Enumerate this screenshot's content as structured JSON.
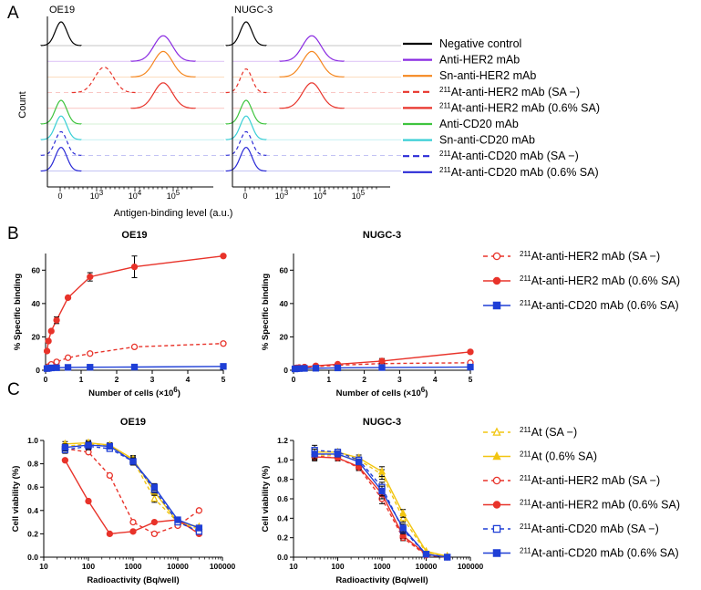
{
  "panel_letters": [
    "A",
    "B",
    "C"
  ],
  "panel_a": {
    "cell_lines": [
      "OE19",
      "NUGC-3"
    ],
    "ylabel": "Count",
    "xlabel": "Antigen-binding level (a.u.)",
    "ticks": [
      "0",
      "10",
      "3",
      "10",
      "4",
      "10",
      "5"
    ],
    "legend": [
      {
        "prefix": "",
        "text": "Negative control",
        "color": "#000000",
        "dashed": false
      },
      {
        "prefix": "",
        "text": "Anti-HER2 mAb",
        "color": "#8a2be2",
        "dashed": false
      },
      {
        "prefix": "",
        "text": "Sn-anti-HER2 mAb",
        "color": "#f5871f",
        "dashed": false
      },
      {
        "prefix": "211",
        "text": "At-anti-HER2 mAb (SA −)",
        "color": "#e8332a",
        "dashed": true
      },
      {
        "prefix": "211",
        "text": "At-anti-HER2 mAb (0.6% SA)",
        "color": "#e8332a",
        "dashed": false
      },
      {
        "prefix": "",
        "text": "Anti-CD20 mAb",
        "color": "#3ec43e",
        "dashed": false
      },
      {
        "prefix": "",
        "text": "Sn-anti-CD20 mAb",
        "color": "#39cfd6",
        "dashed": false
      },
      {
        "prefix": "211",
        "text": "At-anti-CD20 mAb (SA −)",
        "color": "#2b2bd6",
        "dashed": true
      },
      {
        "prefix": "211",
        "text": "At-anti-CD20 mAb (0.6% SA)",
        "color": "#2b2bd6",
        "dashed": false
      }
    ]
  },
  "panel_b_legend": [
    {
      "prefix": "211",
      "text": "At-anti-HER2 mAb (SA −)",
      "color": "#e8332a",
      "dashed": true,
      "marker": "open-circle"
    },
    {
      "prefix": "211",
      "text": "At-anti-HER2 mAb (0.6% SA)",
      "color": "#e8332a",
      "dashed": false,
      "marker": "filled-circle"
    },
    {
      "prefix": "211",
      "text": "At-anti-CD20 mAb (0.6% SA)",
      "color": "#1f3fd6",
      "dashed": false,
      "marker": "filled-square"
    }
  ],
  "panel_c_legend": [
    {
      "prefix": "211",
      "text": "At (SA −)",
      "color": "#f2c511",
      "dashed": true,
      "marker": "open-triangle"
    },
    {
      "prefix": "211",
      "text": "At (0.6% SA)",
      "color": "#f2c511",
      "dashed": false,
      "marker": "filled-triangle"
    },
    {
      "prefix": "211",
      "text": "At-anti-HER2 mAb (SA −)",
      "color": "#e8332a",
      "dashed": true,
      "marker": "open-circle"
    },
    {
      "prefix": "211",
      "text": "At-anti-HER2 mAb (0.6% SA)",
      "color": "#e8332a",
      "dashed": false,
      "marker": "filled-circle"
    },
    {
      "prefix": "211",
      "text": "At-anti-CD20 mAb (SA −)",
      "color": "#1f3fd6",
      "dashed": true,
      "marker": "open-square"
    },
    {
      "prefix": "211",
      "text": "At-anti-CD20 mAb (0.6% SA)",
      "color": "#1f3fd6",
      "dashed": false,
      "marker": "filled-square"
    }
  ],
  "chart_data": [
    {
      "id": "B-OE19",
      "type": "line",
      "title": "OE19",
      "xlabel": "Number of cells (×10",
      "xlabel_sup": "6",
      "xlabel_end": ")",
      "ylabel": "% Specific binding",
      "xlim": [
        0,
        5
      ],
      "ylim": [
        0,
        70
      ],
      "xticks": [
        0,
        1,
        2,
        3,
        4,
        5
      ],
      "yticks": [
        0,
        20,
        40,
        60
      ],
      "series": [
        {
          "name": "211At-anti-HER2 mAb (SA −)",
          "color": "#e8332a",
          "dashed": true,
          "marker": "open-circle",
          "x": [
            0.04,
            0.08,
            0.16,
            0.31,
            0.63,
            1.25,
            2.5,
            5
          ],
          "y": [
            1.0,
            2.2,
            3.5,
            5.0,
            7.5,
            10.0,
            14.0,
            16.0
          ],
          "err": [
            0,
            0,
            0,
            0,
            0,
            0,
            0,
            0
          ]
        },
        {
          "name": "211At-anti-HER2 mAb (0.6% SA)",
          "color": "#e8332a",
          "dashed": false,
          "marker": "filled-circle",
          "x": [
            0.04,
            0.08,
            0.16,
            0.31,
            0.63,
            1.25,
            2.5,
            5
          ],
          "y": [
            11.5,
            17.5,
            23.5,
            30.0,
            43.5,
            56.0,
            62.0,
            68.5
          ],
          "err": [
            0,
            0,
            0,
            2.0,
            0,
            2.5,
            6.5,
            0
          ]
        },
        {
          "name": "211At-anti-CD20 mAb (0.6% SA)",
          "color": "#1f3fd6",
          "dashed": false,
          "marker": "filled-square",
          "x": [
            0.04,
            0.08,
            0.16,
            0.31,
            0.63,
            1.25,
            2.5,
            5
          ],
          "y": [
            1.0,
            1.2,
            1.4,
            1.5,
            1.7,
            1.8,
            1.9,
            2.3
          ],
          "err": [
            0,
            0,
            0,
            0,
            0,
            0,
            0,
            0
          ]
        }
      ]
    },
    {
      "id": "B-NUGC3",
      "type": "line",
      "title": "NUGC-3",
      "xlabel": "Number of cells (×10",
      "xlabel_sup": "6",
      "xlabel_end": ")",
      "ylabel": "% Specific binding",
      "xlim": [
        0,
        5
      ],
      "ylim": [
        0,
        70
      ],
      "xticks": [
        0,
        1,
        2,
        3,
        4,
        5
      ],
      "yticks": [
        0,
        20,
        40,
        60
      ],
      "series": [
        {
          "name": "211At-anti-HER2 mAb (SA −)",
          "color": "#e8332a",
          "dashed": true,
          "marker": "open-circle",
          "x": [
            0.04,
            0.08,
            0.16,
            0.31,
            0.63,
            1.25,
            2.5,
            5
          ],
          "y": [
            1.2,
            1.4,
            1.6,
            1.8,
            2.2,
            3.0,
            4.0,
            4.5
          ],
          "err": [
            0,
            0,
            0,
            0,
            0,
            0,
            0,
            0
          ]
        },
        {
          "name": "211At-anti-HER2 mAb (0.6% SA)",
          "color": "#e8332a",
          "dashed": false,
          "marker": "filled-circle",
          "x": [
            0.04,
            0.08,
            0.16,
            0.31,
            0.63,
            1.25,
            2.5,
            5
          ],
          "y": [
            1.0,
            1.3,
            1.5,
            1.9,
            2.6,
            3.6,
            5.5,
            11.0
          ],
          "err": [
            0,
            0,
            0,
            0,
            0,
            0,
            1.5,
            0
          ]
        },
        {
          "name": "211At-anti-CD20 mAb (0.6% SA)",
          "color": "#1f3fd6",
          "dashed": false,
          "marker": "filled-square",
          "x": [
            0.04,
            0.08,
            0.16,
            0.31,
            0.63,
            1.25,
            2.5,
            5
          ],
          "y": [
            0.8,
            0.9,
            1.0,
            1.1,
            1.2,
            1.4,
            1.6,
            1.9
          ],
          "err": [
            0,
            0,
            0,
            0,
            0,
            0,
            0,
            0
          ]
        }
      ]
    },
    {
      "id": "C-OE19",
      "type": "line",
      "title": "OE19",
      "xlabel": "Radioactivity (Bq/well)",
      "ylabel": "Cell viability (%)",
      "xscale": "log",
      "xlim": [
        10,
        100000
      ],
      "ylim": [
        0,
        1.0
      ],
      "xticks": [
        10,
        100,
        1000,
        10000,
        100000
      ],
      "xticklabels": [
        "10",
        "100",
        "1000",
        "10000",
        "100000"
      ],
      "yticks": [
        0,
        0.2,
        0.4,
        0.6,
        0.8,
        1.0
      ],
      "yticklabels": [
        "0.0",
        "0.2",
        "0.4",
        "0.6",
        "0.8",
        "1.0"
      ],
      "series": [
        {
          "name": "211At (SA −)",
          "color": "#f2c511",
          "dashed": true,
          "marker": "open-triangle",
          "x": [
            30,
            100,
            300,
            1000,
            3000,
            10000,
            30000
          ],
          "y": [
            0.95,
            0.97,
            0.95,
            0.83,
            0.5,
            0.3,
            0.24
          ],
          "err": [
            0.02,
            0.02,
            0.02,
            0.03,
            0.03,
            0,
            0
          ]
        },
        {
          "name": "211At (0.6% SA)",
          "color": "#f2c511",
          "dashed": false,
          "marker": "filled-triangle",
          "x": [
            30,
            100,
            300,
            1000,
            3000,
            10000,
            30000
          ],
          "y": [
            0.97,
            0.98,
            0.96,
            0.84,
            0.56,
            0.3,
            0.26
          ],
          "err": [
            0.02,
            0.02,
            0.02,
            0.03,
            0.03,
            0,
            0
          ]
        },
        {
          "name": "211At-anti-HER2 mAb (SA −)",
          "color": "#e8332a",
          "dashed": true,
          "marker": "open-circle",
          "x": [
            30,
            100,
            300,
            1000,
            3000,
            10000,
            30000
          ],
          "y": [
            0.93,
            0.9,
            0.7,
            0.3,
            0.2,
            0.27,
            0.4
          ],
          "err": [
            0,
            0,
            0,
            0,
            0,
            0,
            0
          ]
        },
        {
          "name": "211At-anti-HER2 mAb (0.6% SA)",
          "color": "#e8332a",
          "dashed": false,
          "marker": "filled-circle",
          "x": [
            30,
            100,
            300,
            1000,
            3000,
            10000,
            30000
          ],
          "y": [
            0.83,
            0.48,
            0.2,
            0.22,
            0.3,
            0.32,
            0.2
          ],
          "err": [
            0,
            0,
            0,
            0,
            0,
            0,
            0
          ]
        },
        {
          "name": "211At-anti-CD20 mAb (SA −)",
          "color": "#1f3fd6",
          "dashed": true,
          "marker": "open-square",
          "x": [
            30,
            100,
            300,
            1000,
            3000,
            10000,
            30000
          ],
          "y": [
            0.92,
            0.95,
            0.93,
            0.82,
            0.58,
            0.3,
            0.22
          ],
          "err": [
            0.03,
            0.03,
            0.02,
            0.03,
            0.03,
            0,
            0
          ]
        },
        {
          "name": "211At-anti-CD20 mAb (0.6% SA)",
          "color": "#1f3fd6",
          "dashed": false,
          "marker": "filled-square",
          "x": [
            30,
            100,
            300,
            1000,
            3000,
            10000,
            30000
          ],
          "y": [
            0.94,
            0.96,
            0.95,
            0.82,
            0.6,
            0.32,
            0.25
          ],
          "err": [
            0.03,
            0.03,
            0.02,
            0.03,
            0.03,
            0,
            0
          ]
        }
      ]
    },
    {
      "id": "C-NUGC3",
      "type": "line",
      "title": "NUGC-3",
      "xlabel": "Radioactivity (Bq/well)",
      "ylabel": "Cell viability (%)",
      "xscale": "log",
      "xlim": [
        10,
        100000
      ],
      "ylim": [
        0,
        1.2
      ],
      "xticks": [
        10,
        100,
        1000,
        10000,
        100000
      ],
      "xticklabels": [
        "10",
        "100",
        "1000",
        "10000",
        "100000"
      ],
      "yticks": [
        0,
        0.2,
        0.4,
        0.6,
        0.8,
        1.0,
        1.2
      ],
      "yticklabels": [
        "0.0",
        "0.2",
        "0.4",
        "0.6",
        "0.8",
        "1.0",
        "1.2"
      ],
      "series": [
        {
          "name": "211At (SA −)",
          "color": "#f2c511",
          "dashed": true,
          "marker": "open-triangle",
          "x": [
            30,
            100,
            300,
            1000,
            3000,
            10000,
            30000
          ],
          "y": [
            1.05,
            1.05,
            1.0,
            0.85,
            0.4,
            0.05,
            0.01
          ],
          "err": [
            0.04,
            0.03,
            0.03,
            0.05,
            0.04,
            0,
            0
          ]
        },
        {
          "name": "211At (0.6% SA)",
          "color": "#f2c511",
          "dashed": false,
          "marker": "filled-triangle",
          "x": [
            30,
            100,
            300,
            1000,
            3000,
            10000,
            30000
          ],
          "y": [
            1.08,
            1.08,
            1.02,
            0.88,
            0.45,
            0.06,
            0.01
          ],
          "err": [
            0.04,
            0.03,
            0.03,
            0.05,
            0.04,
            0,
            0
          ]
        },
        {
          "name": "211At-anti-HER2 mAb (SA −)",
          "color": "#e8332a",
          "dashed": true,
          "marker": "open-circle",
          "x": [
            30,
            100,
            300,
            1000,
            3000,
            10000,
            30000
          ],
          "y": [
            1.04,
            1.02,
            0.92,
            0.6,
            0.2,
            0.02,
            0.0
          ],
          "err": [
            0.04,
            0.03,
            0.03,
            0.05,
            0.03,
            0,
            0
          ]
        },
        {
          "name": "211At-anti-HER2 mAb (0.6% SA)",
          "color": "#e8332a",
          "dashed": false,
          "marker": "filled-circle",
          "x": [
            30,
            100,
            300,
            1000,
            3000,
            10000,
            30000
          ],
          "y": [
            1.03,
            1.02,
            0.93,
            0.65,
            0.22,
            0.03,
            0.0
          ],
          "err": [
            0.04,
            0.03,
            0.03,
            0.05,
            0.03,
            0,
            0
          ]
        },
        {
          "name": "211At-anti-CD20 mAb (SA −)",
          "color": "#1f3fd6",
          "dashed": true,
          "marker": "open-square",
          "x": [
            30,
            100,
            300,
            1000,
            3000,
            10000,
            30000
          ],
          "y": [
            1.1,
            1.08,
            1.0,
            0.72,
            0.28,
            0.03,
            0.0
          ],
          "err": [
            0.05,
            0.03,
            0.03,
            0.05,
            0.04,
            0,
            0
          ]
        },
        {
          "name": "211At-anti-CD20 mAb (0.6% SA)",
          "color": "#1f3fd6",
          "dashed": false,
          "marker": "filled-square",
          "x": [
            30,
            100,
            300,
            1000,
            3000,
            10000,
            30000
          ],
          "y": [
            1.06,
            1.06,
            0.98,
            0.68,
            0.3,
            0.03,
            0.0
          ],
          "err": [
            0.05,
            0.03,
            0.03,
            0.05,
            0.04,
            0,
            0
          ]
        }
      ]
    }
  ]
}
